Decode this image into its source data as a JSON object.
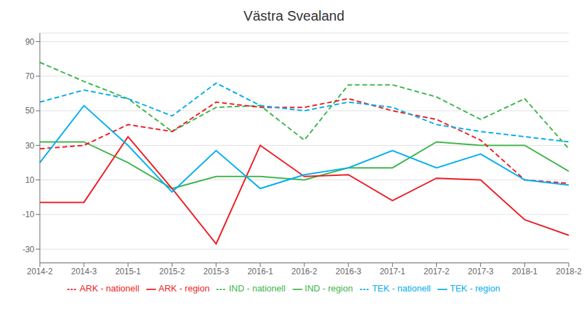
{
  "chart_data": {
    "type": "line",
    "title": "Västra Svealand",
    "categories": [
      "2014-2",
      "2014-3",
      "2015-1",
      "2015-2",
      "2015-3",
      "2016-1",
      "2016-2",
      "2016-3",
      "2017-1",
      "2017-2",
      "2017-3",
      "2018-1",
      "2018-2"
    ],
    "series": [
      {
        "name": "IND - region",
        "color": "#3CB54A",
        "line_style": "solid",
        "values": [
          32,
          32,
          20,
          5,
          12,
          12,
          10,
          17,
          17,
          32,
          30,
          30,
          15
        ]
      },
      {
        "name": "IND - nationell",
        "color": "#3CB54A",
        "line_style": "dashed",
        "values": [
          78,
          67,
          57,
          38,
          52,
          53,
          33,
          65,
          65,
          58,
          45,
          57,
          28
        ]
      },
      {
        "name": "ARK - region",
        "color": "#ED1C24",
        "line_style": "solid",
        "values": [
          -3,
          -3,
          35,
          5,
          -27,
          30,
          12,
          13,
          -2,
          11,
          10,
          -13,
          -22
        ]
      },
      {
        "name": "ARK - nationell",
        "color": "#ED1C24",
        "line_style": "dashed",
        "values": [
          28,
          30,
          42,
          38,
          55,
          52,
          52,
          57,
          50,
          45,
          33,
          10,
          8
        ]
      },
      {
        "name": "TEK - region",
        "color": "#00AEEF",
        "line_style": "solid",
        "values": [
          20,
          53,
          30,
          3,
          27,
          5,
          13,
          17,
          27,
          17,
          25,
          10,
          7
        ]
      },
      {
        "name": "TEK - nationell",
        "color": "#00AEEF",
        "line_style": "dashed",
        "values": [
          55,
          62,
          57,
          47,
          66,
          53,
          50,
          55,
          52,
          42,
          38,
          35,
          32
        ]
      }
    ],
    "ylim": [
      -38,
      95
    ],
    "yticks": [
      -30,
      -10,
      10,
      30,
      50,
      70,
      90
    ],
    "grid": true,
    "legend": "bottom"
  }
}
